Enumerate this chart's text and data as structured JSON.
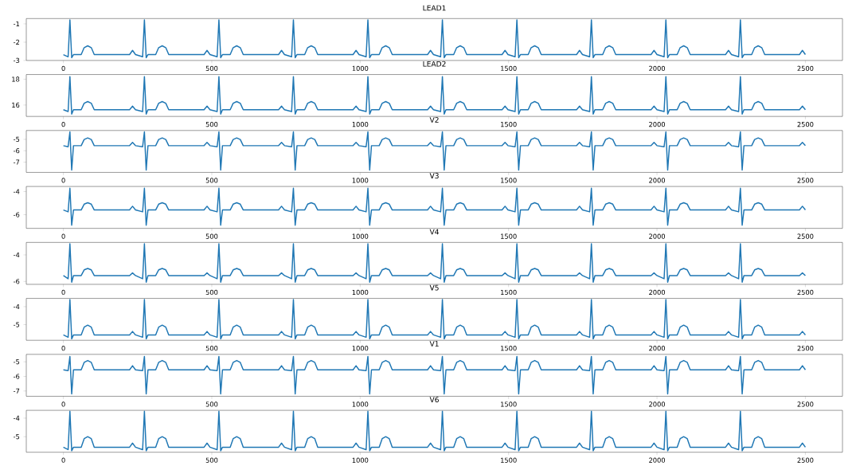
{
  "chart_data": [
    {
      "type": "line",
      "title": "LEAD1",
      "color": "#1f77b4",
      "xlim": [
        -125,
        2625
      ],
      "ylim": [
        -3.0,
        -0.71
      ],
      "xticks": [
        0,
        500,
        1000,
        1500,
        2000,
        2500
      ],
      "yticks": [
        -3,
        -2,
        -1
      ],
      "x": [
        0,
        16,
        22,
        28,
        34,
        60,
        70,
        82,
        94,
        104,
        223,
        233,
        243,
        267,
        273,
        279,
        285,
        311,
        321,
        333,
        345,
        355,
        474,
        484,
        494,
        518,
        524,
        530,
        536,
        562,
        572,
        584,
        596,
        606,
        725,
        735,
        745,
        769,
        775,
        781,
        787,
        813,
        823,
        835,
        847,
        857,
        976,
        986,
        996,
        1020,
        1026,
        1032,
        1038,
        1064,
        1074,
        1086,
        1098,
        1108,
        1227,
        1237,
        1247,
        1271,
        1277,
        1283,
        1289,
        1315,
        1325,
        1337,
        1349,
        1359,
        1478,
        1488,
        1498,
        1522,
        1528,
        1534,
        1540,
        1566,
        1576,
        1588,
        1600,
        1610,
        1729,
        1739,
        1749,
        1773,
        1779,
        1785,
        1791,
        1817,
        1827,
        1839,
        1851,
        1861,
        1980,
        1990,
        2000,
        2024,
        2030,
        2036,
        2042,
        2068,
        2078,
        2090,
        2102,
        2112,
        2231,
        2241,
        2251,
        2275,
        2281,
        2287,
        2293,
        2319,
        2329,
        2341,
        2353,
        2363,
        2480,
        2490,
        2500
      ],
      "values": [
        -2.68,
        -2.8,
        -0.78,
        -2.85,
        -2.68,
        -2.68,
        -2.3,
        -2.2,
        -2.3,
        -2.68,
        -2.68,
        -2.45,
        -2.68,
        -2.8,
        -0.78,
        -2.85,
        -2.68,
        -2.68,
        -2.3,
        -2.2,
        -2.3,
        -2.68,
        -2.68,
        -2.45,
        -2.68,
        -2.8,
        -0.78,
        -2.85,
        -2.68,
        -2.68,
        -2.3,
        -2.2,
        -2.3,
        -2.68,
        -2.68,
        -2.45,
        -2.68,
        -2.8,
        -0.78,
        -2.85,
        -2.68,
        -2.68,
        -2.3,
        -2.2,
        -2.3,
        -2.68,
        -2.68,
        -2.45,
        -2.68,
        -2.8,
        -0.78,
        -2.85,
        -2.68,
        -2.68,
        -2.3,
        -2.2,
        -2.3,
        -2.68,
        -2.68,
        -2.45,
        -2.68,
        -2.8,
        -0.78,
        -2.85,
        -2.68,
        -2.68,
        -2.3,
        -2.2,
        -2.3,
        -2.68,
        -2.68,
        -2.45,
        -2.68,
        -2.8,
        -0.78,
        -2.85,
        -2.68,
        -2.68,
        -2.3,
        -2.2,
        -2.3,
        -2.68,
        -2.68,
        -2.45,
        -2.68,
        -2.8,
        -0.78,
        -2.85,
        -2.68,
        -2.68,
        -2.3,
        -2.2,
        -2.3,
        -2.68,
        -2.68,
        -2.45,
        -2.68,
        -2.8,
        -0.78,
        -2.85,
        -2.68,
        -2.68,
        -2.3,
        -2.2,
        -2.3,
        -2.68,
        -2.68,
        -2.45,
        -2.68,
        -2.8,
        -0.78,
        -2.85,
        -2.68,
        -2.68,
        -2.3,
        -2.2,
        -2.3,
        -2.68,
        -2.68,
        -2.45,
        -2.68
      ]
    },
    {
      "type": "line",
      "title": "LEAD2",
      "color": "#1f77b4",
      "xlim": [
        -125,
        2625
      ],
      "ylim": [
        15.12,
        18.36
      ],
      "xticks": [
        0,
        500,
        1000,
        1500,
        2000,
        2500
      ],
      "yticks": [
        16,
        18
      ],
      "x": [
        0,
        16,
        22,
        28,
        34,
        60,
        70,
        82,
        94,
        104,
        223,
        233,
        243,
        267,
        273,
        279,
        285,
        311,
        321,
        333,
        345,
        355,
        474,
        484,
        494,
        518,
        524,
        530,
        536,
        562,
        572,
        584,
        596,
        606,
        725,
        735,
        745,
        769,
        775,
        781,
        787,
        813,
        823,
        835,
        847,
        857,
        976,
        986,
        996,
        1020,
        1026,
        1032,
        1038,
        1064,
        1074,
        1086,
        1098,
        1108,
        1227,
        1237,
        1247,
        1271,
        1277,
        1283,
        1289,
        1315,
        1325,
        1337,
        1349,
        1359,
        1478,
        1488,
        1498,
        1522,
        1528,
        1534,
        1540,
        1566,
        1576,
        1588,
        1600,
        1610,
        1729,
        1739,
        1749,
        1773,
        1779,
        1785,
        1791,
        1817,
        1827,
        1839,
        1851,
        1861,
        1980,
        1990,
        2000,
        2024,
        2030,
        2036,
        2042,
        2068,
        2078,
        2090,
        2102,
        2112,
        2231,
        2241,
        2251,
        2275,
        2281,
        2287,
        2293,
        2319,
        2329,
        2341,
        2353,
        2363,
        2480,
        2490,
        2500
      ],
      "values": [
        15.64,
        15.5,
        18.2,
        15.3,
        15.64,
        15.64,
        16.14,
        16.27,
        16.14,
        15.64,
        15.64,
        15.92,
        15.64,
        15.5,
        18.2,
        15.3,
        15.64,
        15.64,
        16.14,
        16.27,
        16.14,
        15.64,
        15.64,
        15.92,
        15.64,
        15.5,
        18.2,
        15.3,
        15.64,
        15.64,
        16.14,
        16.27,
        16.14,
        15.64,
        15.64,
        15.92,
        15.64,
        15.5,
        18.2,
        15.3,
        15.64,
        15.64,
        16.14,
        16.27,
        16.14,
        15.64,
        15.64,
        15.92,
        15.64,
        15.5,
        18.2,
        15.3,
        15.64,
        15.64,
        16.14,
        16.27,
        16.14,
        15.64,
        15.64,
        15.92,
        15.64,
        15.5,
        18.2,
        15.3,
        15.64,
        15.64,
        16.14,
        16.27,
        16.14,
        15.64,
        15.64,
        15.92,
        15.64,
        15.5,
        18.2,
        15.3,
        15.64,
        15.64,
        16.14,
        16.27,
        16.14,
        15.64,
        15.64,
        15.92,
        15.64,
        15.5,
        18.2,
        15.3,
        15.64,
        15.64,
        16.14,
        16.27,
        16.14,
        15.64,
        15.64,
        15.92,
        15.64,
        15.5,
        18.2,
        15.3,
        15.64,
        15.64,
        16.14,
        16.27,
        16.14,
        15.64,
        15.64,
        15.92,
        15.64,
        15.5,
        18.2,
        15.3,
        15.64,
        15.64,
        16.14,
        16.27,
        16.14,
        15.64,
        15.64,
        15.92,
        15.64
      ]
    },
    {
      "type": "line",
      "title": "V2",
      "color": "#1f77b4",
      "xlim": [
        -125,
        2625
      ],
      "ylim": [
        -7.9,
        -4.23
      ],
      "xticks": [
        0,
        500,
        1000,
        1500,
        2000,
        2500
      ],
      "yticks": [
        -7,
        -6,
        -5
      ],
      "x": [
        0,
        16,
        22,
        28,
        34,
        60,
        70,
        82,
        94,
        104,
        223,
        233,
        243,
        267,
        273,
        279,
        285,
        311,
        321,
        333,
        345,
        355,
        474,
        484,
        494,
        518,
        524,
        530,
        536,
        562,
        572,
        584,
        596,
        606,
        725,
        735,
        745,
        769,
        775,
        781,
        787,
        813,
        823,
        835,
        847,
        857,
        976,
        986,
        996,
        1020,
        1026,
        1032,
        1038,
        1064,
        1074,
        1086,
        1098,
        1108,
        1227,
        1237,
        1247,
        1271,
        1277,
        1283,
        1289,
        1315,
        1325,
        1337,
        1349,
        1359,
        1478,
        1488,
        1498,
        1522,
        1528,
        1534,
        1540,
        1566,
        1576,
        1588,
        1600,
        1610,
        1729,
        1739,
        1749,
        1773,
        1779,
        1785,
        1791,
        1817,
        1827,
        1839,
        1851,
        1861,
        1980,
        1990,
        2000,
        2024,
        2030,
        2036,
        2042,
        2068,
        2078,
        2090,
        2102,
        2112,
        2231,
        2241,
        2251,
        2275,
        2281,
        2287,
        2293,
        2319,
        2329,
        2341,
        2353,
        2363,
        2480,
        2490,
        2500
      ],
      "values": [
        -5.56,
        -5.65,
        -4.35,
        -7.7,
        -5.56,
        -5.56,
        -5.02,
        -4.88,
        -5.02,
        -5.56,
        -5.56,
        -5.28,
        -5.56,
        -5.65,
        -4.35,
        -7.7,
        -5.56,
        -5.56,
        -5.02,
        -4.88,
        -5.02,
        -5.56,
        -5.56,
        -5.28,
        -5.56,
        -5.65,
        -4.35,
        -7.7,
        -5.56,
        -5.56,
        -5.02,
        -4.88,
        -5.02,
        -5.56,
        -5.56,
        -5.28,
        -5.56,
        -5.65,
        -4.35,
        -7.7,
        -5.56,
        -5.56,
        -5.02,
        -4.88,
        -5.02,
        -5.56,
        -5.56,
        -5.28,
        -5.56,
        -5.65,
        -4.35,
        -7.7,
        -5.56,
        -5.56,
        -5.02,
        -4.88,
        -5.02,
        -5.56,
        -5.56,
        -5.28,
        -5.56,
        -5.65,
        -4.35,
        -7.7,
        -5.56,
        -5.56,
        -5.02,
        -4.88,
        -5.02,
        -5.56,
        -5.56,
        -5.28,
        -5.56,
        -5.65,
        -4.35,
        -7.7,
        -5.56,
        -5.56,
        -5.02,
        -4.88,
        -5.02,
        -5.56,
        -5.56,
        -5.28,
        -5.56,
        -5.65,
        -4.35,
        -7.7,
        -5.56,
        -5.56,
        -5.02,
        -4.88,
        -5.02,
        -5.56,
        -5.56,
        -5.28,
        -5.56,
        -5.65,
        -4.35,
        -7.7,
        -5.56,
        -5.56,
        -5.02,
        -4.88,
        -5.02,
        -5.56,
        -5.56,
        -5.28,
        -5.56,
        -5.65,
        -4.35,
        -7.7,
        -5.56,
        -5.56,
        -5.02,
        -4.88,
        -5.02,
        -5.56,
        -5.56,
        -5.28,
        -5.56
      ]
    },
    {
      "type": "line",
      "title": "V3",
      "color": "#1f77b4",
      "xlim": [
        -125,
        2625
      ],
      "ylim": [
        -7.18,
        -3.56
      ],
      "xticks": [
        0,
        500,
        1000,
        1500,
        2000,
        2500
      ],
      "yticks": [
        -6,
        -4
      ],
      "x": [
        0,
        16,
        22,
        28,
        34,
        60,
        70,
        82,
        94,
        104,
        223,
        233,
        243,
        267,
        273,
        279,
        285,
        311,
        321,
        333,
        345,
        355,
        474,
        484,
        494,
        518,
        524,
        530,
        536,
        562,
        572,
        584,
        596,
        606,
        725,
        735,
        745,
        769,
        775,
        781,
        787,
        813,
        823,
        835,
        847,
        857,
        976,
        986,
        996,
        1020,
        1026,
        1032,
        1038,
        1064,
        1074,
        1086,
        1098,
        1108,
        1227,
        1237,
        1247,
        1271,
        1277,
        1283,
        1289,
        1315,
        1325,
        1337,
        1349,
        1359,
        1478,
        1488,
        1498,
        1522,
        1528,
        1534,
        1540,
        1566,
        1576,
        1588,
        1600,
        1610,
        1729,
        1739,
        1749,
        1773,
        1779,
        1785,
        1791,
        1817,
        1827,
        1839,
        1851,
        1861,
        1980,
        1990,
        2000,
        2024,
        2030,
        2036,
        2042,
        2068,
        2078,
        2090,
        2102,
        2112,
        2231,
        2241,
        2251,
        2275,
        2281,
        2287,
        2293,
        2319,
        2329,
        2341,
        2353,
        2363,
        2480,
        2490,
        2500
      ],
      "values": [
        -5.59,
        -5.75,
        -3.71,
        -6.91,
        -5.59,
        -5.59,
        -5.09,
        -4.97,
        -5.09,
        -5.59,
        -5.59,
        -5.27,
        -5.59,
        -5.75,
        -3.71,
        -6.91,
        -5.59,
        -5.59,
        -5.09,
        -4.97,
        -5.09,
        -5.59,
        -5.59,
        -5.27,
        -5.59,
        -5.75,
        -3.71,
        -6.91,
        -5.59,
        -5.59,
        -5.09,
        -4.97,
        -5.09,
        -5.59,
        -5.59,
        -5.27,
        -5.59,
        -5.75,
        -3.71,
        -6.91,
        -5.59,
        -5.59,
        -5.09,
        -4.97,
        -5.09,
        -5.59,
        -5.59,
        -5.27,
        -5.59,
        -5.75,
        -3.71,
        -6.91,
        -5.59,
        -5.59,
        -5.09,
        -4.97,
        -5.09,
        -5.59,
        -5.59,
        -5.27,
        -5.59,
        -5.75,
        -3.71,
        -6.91,
        -5.59,
        -5.59,
        -5.09,
        -4.97,
        -5.09,
        -5.59,
        -5.59,
        -5.27,
        -5.59,
        -5.75,
        -3.71,
        -6.91,
        -5.59,
        -5.59,
        -5.09,
        -4.97,
        -5.09,
        -5.59,
        -5.59,
        -5.27,
        -5.59,
        -5.75,
        -3.71,
        -6.91,
        -5.59,
        -5.59,
        -5.09,
        -4.97,
        -5.09,
        -5.59,
        -5.59,
        -5.27,
        -5.59,
        -5.75,
        -3.71,
        -6.91,
        -5.59,
        -5.59,
        -5.09,
        -4.97,
        -5.09,
        -5.59,
        -5.59,
        -5.27,
        -5.59,
        -5.75,
        -3.71,
        -6.91,
        -5.59,
        -5.59,
        -5.09,
        -4.97,
        -5.09,
        -5.59,
        -5.59,
        -5.27,
        -5.59
      ]
    },
    {
      "type": "line",
      "title": "V4",
      "color": "#1f77b4",
      "xlim": [
        -125,
        2625
      ],
      "ylim": [
        -6.22,
        -3.06
      ],
      "xticks": [
        0,
        500,
        1000,
        1500,
        2000,
        2500
      ],
      "yticks": [
        -6,
        -4
      ],
      "x": [
        0,
        16,
        22,
        28,
        34,
        60,
        70,
        82,
        94,
        104,
        223,
        233,
        243,
        267,
        273,
        279,
        285,
        311,
        321,
        333,
        345,
        355,
        474,
        484,
        494,
        518,
        524,
        530,
        536,
        562,
        572,
        584,
        596,
        606,
        725,
        735,
        745,
        769,
        775,
        781,
        787,
        813,
        823,
        835,
        847,
        857,
        976,
        986,
        996,
        1020,
        1026,
        1032,
        1038,
        1064,
        1074,
        1086,
        1098,
        1108,
        1227,
        1237,
        1247,
        1271,
        1277,
        1283,
        1289,
        1315,
        1325,
        1337,
        1349,
        1359,
        1478,
        1488,
        1498,
        1522,
        1528,
        1534,
        1540,
        1566,
        1576,
        1588,
        1600,
        1610,
        1729,
        1739,
        1749,
        1773,
        1779,
        1785,
        1791,
        1817,
        1827,
        1839,
        1851,
        1861,
        1980,
        1990,
        2000,
        2024,
        2030,
        2036,
        2042,
        2068,
        2078,
        2090,
        2102,
        2112,
        2231,
        2241,
        2251,
        2275,
        2281,
        2287,
        2293,
        2319,
        2329,
        2341,
        2353,
        2363,
        2480,
        2490,
        2500
      ],
      "values": [
        -5.56,
        -5.8,
        -3.16,
        -6.06,
        -5.56,
        -5.56,
        -5.13,
        -5.02,
        -5.13,
        -5.56,
        -5.56,
        -5.36,
        -5.56,
        -5.8,
        -3.16,
        -6.06,
        -5.56,
        -5.56,
        -5.13,
        -5.02,
        -5.13,
        -5.56,
        -5.56,
        -5.36,
        -5.56,
        -5.8,
        -3.16,
        -6.06,
        -5.56,
        -5.56,
        -5.13,
        -5.02,
        -5.13,
        -5.56,
        -5.56,
        -5.36,
        -5.56,
        -5.8,
        -3.16,
        -6.06,
        -5.56,
        -5.56,
        -5.13,
        -5.02,
        -5.13,
        -5.56,
        -5.56,
        -5.36,
        -5.56,
        -5.8,
        -3.16,
        -6.06,
        -5.56,
        -5.56,
        -5.13,
        -5.02,
        -5.13,
        -5.56,
        -5.56,
        -5.36,
        -5.56,
        -5.8,
        -3.16,
        -6.06,
        -5.56,
        -5.56,
        -5.13,
        -5.02,
        -5.13,
        -5.56,
        -5.56,
        -5.36,
        -5.56,
        -5.8,
        -3.16,
        -6.06,
        -5.56,
        -5.56,
        -5.13,
        -5.02,
        -5.13,
        -5.56,
        -5.56,
        -5.36,
        -5.56,
        -5.8,
        -3.16,
        -6.06,
        -5.56,
        -5.56,
        -5.13,
        -5.02,
        -5.13,
        -5.56,
        -5.56,
        -5.36,
        -5.56,
        -5.8,
        -3.16,
        -6.06,
        -5.56,
        -5.56,
        -5.13,
        -5.02,
        -5.13,
        -5.56,
        -5.56,
        -5.36,
        -5.56,
        -5.8,
        -3.16,
        -6.06,
        -5.56,
        -5.56,
        -5.13,
        -5.02,
        -5.13,
        -5.56,
        -5.56,
        -5.36,
        -5.56
      ]
    },
    {
      "type": "line",
      "title": "V5",
      "color": "#1f77b4",
      "xlim": [
        -125,
        2625
      ],
      "ylim": [
        -5.87,
        -3.54
      ],
      "xticks": [
        0,
        500,
        1000,
        1500,
        2000,
        2500
      ],
      "yticks": [
        -5,
        -4
      ],
      "x": [
        0,
        16,
        22,
        28,
        34,
        60,
        70,
        82,
        94,
        104,
        223,
        233,
        243,
        267,
        273,
        279,
        285,
        311,
        321,
        333,
        345,
        355,
        474,
        484,
        494,
        518,
        524,
        530,
        536,
        562,
        572,
        584,
        596,
        606,
        725,
        735,
        745,
        769,
        775,
        781,
        787,
        813,
        823,
        835,
        847,
        857,
        976,
        986,
        996,
        1020,
        1026,
        1032,
        1038,
        1064,
        1074,
        1086,
        1098,
        1108,
        1227,
        1237,
        1247,
        1271,
        1277,
        1283,
        1289,
        1315,
        1325,
        1337,
        1349,
        1359,
        1478,
        1488,
        1498,
        1522,
        1528,
        1534,
        1540,
        1566,
        1576,
        1588,
        1600,
        1610,
        1729,
        1739,
        1749,
        1773,
        1779,
        1785,
        1791,
        1817,
        1827,
        1839,
        1851,
        1861,
        1980,
        1990,
        2000,
        2024,
        2030,
        2036,
        2042,
        2068,
        2078,
        2090,
        2102,
        2112,
        2231,
        2241,
        2251,
        2275,
        2281,
        2287,
        2293,
        2319,
        2329,
        2341,
        2353,
        2363,
        2480,
        2490,
        2500
      ],
      "values": [
        -5.57,
        -5.7,
        -3.6,
        -5.79,
        -5.57,
        -5.57,
        -5.14,
        -5.03,
        -5.14,
        -5.57,
        -5.57,
        -5.38,
        -5.57,
        -5.7,
        -3.6,
        -5.79,
        -5.57,
        -5.57,
        -5.14,
        -5.03,
        -5.14,
        -5.57,
        -5.57,
        -5.38,
        -5.57,
        -5.7,
        -3.6,
        -5.79,
        -5.57,
        -5.57,
        -5.14,
        -5.03,
        -5.14,
        -5.57,
        -5.57,
        -5.38,
        -5.57,
        -5.7,
        -3.6,
        -5.79,
        -5.57,
        -5.57,
        -5.14,
        -5.03,
        -5.14,
        -5.57,
        -5.57,
        -5.38,
        -5.57,
        -5.7,
        -3.6,
        -5.79,
        -5.57,
        -5.57,
        -5.14,
        -5.03,
        -5.14,
        -5.57,
        -5.57,
        -5.38,
        -5.57,
        -5.7,
        -3.6,
        -5.79,
        -5.57,
        -5.57,
        -5.14,
        -5.03,
        -5.14,
        -5.57,
        -5.57,
        -5.38,
        -5.57,
        -5.7,
        -3.6,
        -5.79,
        -5.57,
        -5.57,
        -5.14,
        -5.03,
        -5.14,
        -5.57,
        -5.57,
        -5.38,
        -5.57,
        -5.7,
        -3.6,
        -5.79,
        -5.57,
        -5.57,
        -5.14,
        -5.03,
        -5.14,
        -5.57,
        -5.57,
        -5.38,
        -5.57,
        -5.7,
        -3.6,
        -5.79,
        -5.57,
        -5.57,
        -5.14,
        -5.03,
        -5.14,
        -5.57,
        -5.57,
        -5.38,
        -5.57,
        -5.7,
        -3.6,
        -5.79,
        -5.57,
        -5.57,
        -5.14,
        -5.03,
        -5.14,
        -5.57,
        -5.57,
        -5.38,
        -5.57
      ]
    },
    {
      "type": "line",
      "title": "V1",
      "color": "#1f77b4",
      "xlim": [
        -125,
        2625
      ],
      "ylim": [
        -7.36,
        -4.49
      ],
      "xticks": [
        0,
        500,
        1000,
        1500,
        2000,
        2500
      ],
      "yticks": [
        -7,
        -6,
        -5
      ],
      "x": [
        0,
        16,
        22,
        28,
        34,
        60,
        70,
        82,
        94,
        104,
        223,
        233,
        243,
        267,
        273,
        279,
        285,
        311,
        321,
        333,
        345,
        355,
        474,
        484,
        494,
        518,
        524,
        530,
        536,
        562,
        572,
        584,
        596,
        606,
        725,
        735,
        745,
        769,
        775,
        781,
        787,
        813,
        823,
        835,
        847,
        857,
        976,
        986,
        996,
        1020,
        1026,
        1032,
        1038,
        1064,
        1074,
        1086,
        1098,
        1108,
        1227,
        1237,
        1247,
        1271,
        1277,
        1283,
        1289,
        1315,
        1325,
        1337,
        1349,
        1359,
        1478,
        1488,
        1498,
        1522,
        1528,
        1534,
        1540,
        1566,
        1576,
        1588,
        1600,
        1610,
        1729,
        1739,
        1749,
        1773,
        1779,
        1785,
        1791,
        1817,
        1827,
        1839,
        1851,
        1861,
        1980,
        1990,
        2000,
        2024,
        2030,
        2036,
        2042,
        2068,
        2078,
        2090,
        2102,
        2112,
        2231,
        2241,
        2251,
        2275,
        2281,
        2287,
        2293,
        2319,
        2329,
        2341,
        2353,
        2363,
        2480,
        2490,
        2500
      ],
      "values": [
        -5.55,
        -5.6,
        -4.63,
        -7.2,
        -5.55,
        -5.55,
        -5.04,
        -4.91,
        -5.04,
        -5.55,
        -5.55,
        -5.27,
        -5.55,
        -5.6,
        -4.63,
        -7.2,
        -5.55,
        -5.55,
        -5.04,
        -4.91,
        -5.04,
        -5.55,
        -5.55,
        -5.27,
        -5.55,
        -5.6,
        -4.63,
        -7.2,
        -5.55,
        -5.55,
        -5.04,
        -4.91,
        -5.04,
        -5.55,
        -5.55,
        -5.27,
        -5.55,
        -5.6,
        -4.63,
        -7.2,
        -5.55,
        -5.55,
        -5.04,
        -4.91,
        -5.04,
        -5.55,
        -5.55,
        -5.27,
        -5.55,
        -5.6,
        -4.63,
        -7.2,
        -5.55,
        -5.55,
        -5.04,
        -4.91,
        -5.04,
        -5.55,
        -5.55,
        -5.27,
        -5.55,
        -5.6,
        -4.63,
        -7.2,
        -5.55,
        -5.55,
        -5.04,
        -4.91,
        -5.04,
        -5.55,
        -5.55,
        -5.27,
        -5.55,
        -5.6,
        -4.63,
        -7.2,
        -5.55,
        -5.55,
        -5.04,
        -4.91,
        -5.04,
        -5.55,
        -5.55,
        -5.27,
        -5.55,
        -5.6,
        -4.63,
        -7.2,
        -5.55,
        -5.55,
        -5.04,
        -4.91,
        -5.04,
        -5.55,
        -5.55,
        -5.27,
        -5.55,
        -5.6,
        -4.63,
        -7.2,
        -5.55,
        -5.55,
        -5.04,
        -4.91,
        -5.04,
        -5.55,
        -5.55,
        -5.27,
        -5.55,
        -5.6,
        -4.63,
        -7.2,
        -5.55,
        -5.55,
        -5.04,
        -4.91,
        -5.04,
        -5.55,
        -5.55,
        -5.27,
        -5.55
      ]
    },
    {
      "type": "line",
      "title": "V6",
      "color": "#1f77b4",
      "xlim": [
        -125,
        2625
      ],
      "ylim": [
        -5.84,
        -3.58
      ],
      "xticks": [
        0,
        500,
        1000,
        1500,
        2000,
        2500
      ],
      "yticks": [
        -5,
        -4
      ],
      "x": [
        0,
        16,
        22,
        28,
        34,
        60,
        70,
        82,
        94,
        104,
        223,
        233,
        243,
        267,
        273,
        279,
        285,
        311,
        321,
        333,
        345,
        355,
        474,
        484,
        494,
        518,
        524,
        530,
        536,
        562,
        572,
        584,
        596,
        606,
        725,
        735,
        745,
        769,
        775,
        781,
        787,
        813,
        823,
        835,
        847,
        857,
        976,
        986,
        996,
        1020,
        1026,
        1032,
        1038,
        1064,
        1074,
        1086,
        1098,
        1108,
        1227,
        1237,
        1247,
        1271,
        1277,
        1283,
        1289,
        1315,
        1325,
        1337,
        1349,
        1359,
        1478,
        1488,
        1498,
        1522,
        1528,
        1534,
        1540,
        1566,
        1576,
        1588,
        1600,
        1610,
        1729,
        1739,
        1749,
        1773,
        1779,
        1785,
        1791,
        1817,
        1827,
        1839,
        1851,
        1861,
        1980,
        1990,
        2000,
        2024,
        2030,
        2036,
        2042,
        2068,
        2078,
        2090,
        2102,
        2112,
        2231,
        2241,
        2251,
        2275,
        2281,
        2287,
        2293,
        2319,
        2329,
        2341,
        2353,
        2363,
        2480,
        2490,
        2500
      ],
      "values": [
        -5.57,
        -5.7,
        -3.63,
        -5.76,
        -5.57,
        -5.57,
        -5.11,
        -5.0,
        -5.11,
        -5.57,
        -5.57,
        -5.35,
        -5.57,
        -5.7,
        -3.63,
        -5.76,
        -5.57,
        -5.57,
        -5.11,
        -5.0,
        -5.11,
        -5.57,
        -5.57,
        -5.35,
        -5.57,
        -5.7,
        -3.63,
        -5.76,
        -5.57,
        -5.57,
        -5.11,
        -5.0,
        -5.11,
        -5.57,
        -5.57,
        -5.35,
        -5.57,
        -5.7,
        -3.63,
        -5.76,
        -5.57,
        -5.57,
        -5.11,
        -5.0,
        -5.11,
        -5.57,
        -5.57,
        -5.35,
        -5.57,
        -5.7,
        -3.63,
        -5.76,
        -5.57,
        -5.57,
        -5.11,
        -5.0,
        -5.11,
        -5.57,
        -5.57,
        -5.35,
        -5.57,
        -5.7,
        -3.63,
        -5.76,
        -5.57,
        -5.57,
        -5.11,
        -5.0,
        -5.11,
        -5.57,
        -5.57,
        -5.35,
        -5.57,
        -5.7,
        -3.63,
        -5.76,
        -5.57,
        -5.57,
        -5.11,
        -5.0,
        -5.11,
        -5.57,
        -5.57,
        -5.35,
        -5.57,
        -5.7,
        -3.63,
        -5.76,
        -5.57,
        -5.57,
        -5.11,
        -5.0,
        -5.11,
        -5.57,
        -5.57,
        -5.35,
        -5.57,
        -5.7,
        -3.63,
        -5.76,
        -5.57,
        -5.57,
        -5.11,
        -5.0,
        -5.11,
        -5.57,
        -5.57,
        -5.35,
        -5.57,
        -5.7,
        -3.63,
        -5.76,
        -5.57,
        -5.57,
        -5.11,
        -5.0,
        -5.11,
        -5.57,
        -5.57,
        -5.35,
        -5.57
      ]
    }
  ]
}
